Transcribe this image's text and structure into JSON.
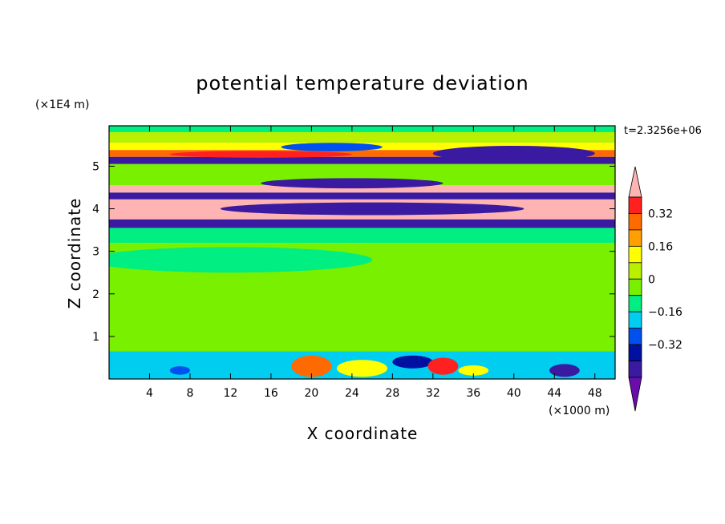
{
  "chart_data": {
    "type": "heatmap",
    "title": "potential temperature deviation",
    "xlabel": "X coordinate",
    "ylabel": "Z coordinate",
    "x_unit": "(×1000 m)",
    "y_unit": "(×1E4 m)",
    "time_label": "t=2.3256e+06",
    "xlim": [
      0,
      50
    ],
    "ylim": [
      0,
      5.95
    ],
    "x_ticks": [
      4,
      8,
      12,
      16,
      20,
      24,
      28,
      32,
      36,
      40,
      44,
      48
    ],
    "y_ticks": [
      1,
      2,
      3,
      4,
      5
    ],
    "colorbar": {
      "levels": [
        -0.48,
        -0.4,
        -0.32,
        -0.24,
        -0.16,
        -0.08,
        0,
        0.08,
        0.16,
        0.24,
        0.32,
        0.4
      ],
      "colors": [
        "#6a0dad",
        "#3a1aa0",
        "#0010a0",
        "#0050f0",
        "#00cdf0",
        "#00ee82",
        "#78f000",
        "#b8f000",
        "#ffff00",
        "#ffa000",
        "#ff6a00",
        "#ff2020",
        "#ffb4b4"
      ],
      "tick_labels": [
        "0.32",
        "0.16",
        "0",
        "−0.16",
        "−0.32"
      ],
      "tick_values": [
        0.32,
        0.16,
        0,
        -0.16,
        -0.32
      ]
    },
    "bands": [
      {
        "z0": 5.8,
        "z1": 5.95,
        "color": "#00ee82"
      },
      {
        "z0": 5.55,
        "z1": 5.8,
        "color": "#b8f000"
      },
      {
        "z0": 5.38,
        "z1": 5.55,
        "color": "#ffff00"
      },
      {
        "z0": 5.22,
        "z1": 5.38,
        "color": "#ff6a00"
      },
      {
        "z0": 5.05,
        "z1": 5.22,
        "color": "#3a1aa0"
      },
      {
        "z0": 4.55,
        "z1": 5.05,
        "color": "#78f000"
      },
      {
        "z0": 4.38,
        "z1": 4.55,
        "color": "#ffb4b4"
      },
      {
        "z0": 4.22,
        "z1": 4.38,
        "color": "#3a1aa0"
      },
      {
        "z0": 3.75,
        "z1": 4.22,
        "color": "#ffb4b4"
      },
      {
        "z0": 3.55,
        "z1": 3.75,
        "color": "#3a1aa0"
      },
      {
        "z0": 3.2,
        "z1": 3.55,
        "color": "#00ee82"
      },
      {
        "z0": 0.65,
        "z1": 3.2,
        "color": "#78f000"
      },
      {
        "z0": 0,
        "z1": 0.65,
        "color": "#00cdf0"
      }
    ],
    "patches": [
      {
        "x": 22,
        "z": 5.45,
        "rx": 5,
        "rz": 0.1,
        "color": "#0050f0"
      },
      {
        "x": 40,
        "z": 5.3,
        "rx": 8,
        "rz": 0.18,
        "color": "#3a1aa0"
      },
      {
        "x": 15,
        "z": 5.28,
        "rx": 9,
        "rz": 0.08,
        "color": "#ff2020"
      },
      {
        "x": 24,
        "z": 4.6,
        "rx": 9,
        "rz": 0.12,
        "color": "#3a1aa0"
      },
      {
        "x": 26,
        "z": 4.0,
        "rx": 15,
        "rz": 0.15,
        "color": "#3a1aa0"
      },
      {
        "x": 12,
        "z": 2.8,
        "rx": 14,
        "rz": 0.3,
        "color": "#00ee82"
      },
      {
        "x": 20,
        "z": 0.3,
        "rx": 2,
        "rz": 0.25,
        "color": "#ff6a00"
      },
      {
        "x": 25,
        "z": 0.25,
        "rx": 2.5,
        "rz": 0.2,
        "color": "#ffff00"
      },
      {
        "x": 30,
        "z": 0.4,
        "rx": 2,
        "rz": 0.15,
        "color": "#0010a0"
      },
      {
        "x": 33,
        "z": 0.3,
        "rx": 1.5,
        "rz": 0.2,
        "color": "#ff2020"
      },
      {
        "x": 36,
        "z": 0.2,
        "rx": 1.5,
        "rz": 0.12,
        "color": "#ffff00"
      },
      {
        "x": 45,
        "z": 0.2,
        "rx": 1.5,
        "rz": 0.15,
        "color": "#3a1aa0"
      },
      {
        "x": 7,
        "z": 0.2,
        "rx": 1,
        "rz": 0.1,
        "color": "#0050f0"
      }
    ]
  }
}
